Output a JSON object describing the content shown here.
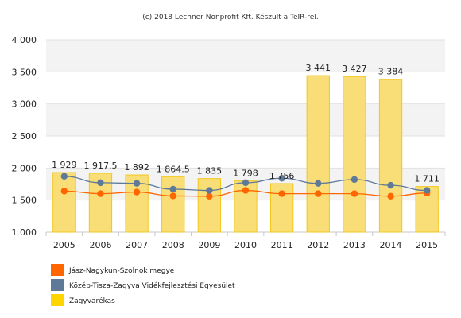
{
  "chart_data": {
    "type": "bar",
    "credit": "(c) 2018 Lechner Nonprofit Kft. Készült a TeIR-rel.",
    "categories": [
      "2005",
      "2006",
      "2007",
      "2008",
      "2009",
      "2010",
      "2011",
      "2012",
      "2013",
      "2014",
      "2015"
    ],
    "ylim": [
      1000,
      4000
    ],
    "yticks": [
      1000,
      1500,
      2000,
      2500,
      3000,
      3500,
      4000
    ],
    "ytick_labels": [
      "1 000",
      "1 500",
      "2 000",
      "2 500",
      "3 000",
      "3 500",
      "4 000"
    ],
    "grid": "horizontal-bands",
    "series": [
      {
        "name": "Jász-Nagykun-Szolnok megye",
        "kind": "line",
        "color": "#ff6600",
        "values": [
          1640,
          1600,
          1625,
          1565,
          1560,
          1650,
          1600,
          1600,
          1600,
          1560,
          1610
        ]
      },
      {
        "name": "Közép-Tisza-Zagyva Vidékfejlesztési Egyesület",
        "kind": "line",
        "color": "#5f7a99",
        "values": [
          1870,
          1770,
          1760,
          1670,
          1650,
          1770,
          1840,
          1760,
          1820,
          1730,
          1650
        ]
      },
      {
        "name": "Zagyvarékas",
        "kind": "bar",
        "color": "#f9de78",
        "stroke": "#f2c81a",
        "values": [
          1929,
          1917.5,
          1892,
          1864.5,
          1835,
          1798,
          1756,
          3441,
          3427,
          3384,
          1711
        ],
        "labels": [
          "1 929",
          "1 917.5",
          "1 892",
          "1 864.5",
          "1 835",
          "1 798",
          "1 756",
          "3 441",
          "3 427",
          "3 384",
          "1 711"
        ]
      }
    ],
    "legend": {
      "placement": "bottom-left",
      "items": [
        {
          "label": "Jász-Nagykun-Szolnok megye",
          "color": "#ff6600"
        },
        {
          "label": "Közép-Tisza-Zagyva Vidékfejlesztési Egyesület",
          "color": "#5f7a99"
        },
        {
          "label": "Zagyvarékas",
          "color": "#ffd500"
        }
      ]
    }
  }
}
